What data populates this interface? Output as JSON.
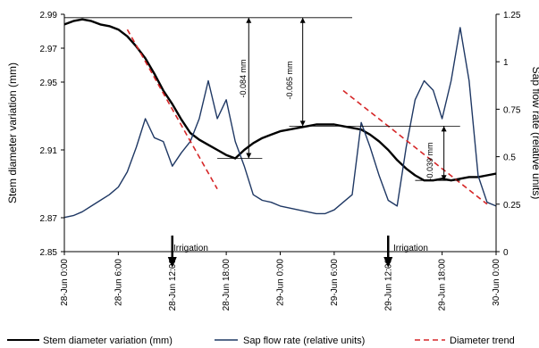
{
  "chart_data": {
    "type": "line",
    "ylabel": "Stem diameter variation (mm)",
    "y2label": "Sap flow rate (relative units)",
    "ylim": [
      2.85,
      2.99
    ],
    "yticks": [
      2.85,
      2.87,
      2.91,
      2.95,
      2.97,
      2.99
    ],
    "y2lim": [
      0,
      1.25
    ],
    "y2ticks": [
      0,
      0.25,
      0.5,
      0.75,
      1,
      1.25
    ],
    "xlim_hours": [
      0,
      48
    ],
    "xticks": [
      {
        "h": 0,
        "label": "28-Jun 0:00"
      },
      {
        "h": 6,
        "label": "28-Jun 6:00"
      },
      {
        "h": 12,
        "label": "28-Jun 12:00"
      },
      {
        "h": 18,
        "label": "28-Jun 18:00"
      },
      {
        "h": 24,
        "label": "29-Jun 0:00"
      },
      {
        "h": 30,
        "label": "29-Jun 6:00"
      },
      {
        "h": 36,
        "label": "29-Jun 12:00"
      },
      {
        "h": 42,
        "label": "29-Jun 18:00"
      },
      {
        "h": 48,
        "label": "30-Jun 0:00"
      }
    ],
    "series": [
      {
        "name": "Stem diameter variation (mm)",
        "color": "#000000",
        "axis": "left",
        "points": [
          [
            0,
            2.984
          ],
          [
            1,
            2.986
          ],
          [
            2,
            2.987
          ],
          [
            3,
            2.986
          ],
          [
            4,
            2.984
          ],
          [
            5,
            2.983
          ],
          [
            6,
            2.981
          ],
          [
            7,
            2.977
          ],
          [
            8,
            2.971
          ],
          [
            9,
            2.964
          ],
          [
            10,
            2.955
          ],
          [
            11,
            2.945
          ],
          [
            12,
            2.937
          ],
          [
            13,
            2.928
          ],
          [
            14,
            2.92
          ],
          [
            15,
            2.916
          ],
          [
            16,
            2.913
          ],
          [
            17,
            2.91
          ],
          [
            18,
            2.907
          ],
          [
            19,
            2.905
          ],
          [
            20,
            2.91
          ],
          [
            21,
            2.914
          ],
          [
            22,
            2.917
          ],
          [
            23,
            2.919
          ],
          [
            24,
            2.921
          ],
          [
            25,
            2.922
          ],
          [
            26,
            2.923
          ],
          [
            27,
            2.924
          ],
          [
            28,
            2.925
          ],
          [
            29,
            2.925
          ],
          [
            30,
            2.925
          ],
          [
            31,
            2.924
          ],
          [
            32,
            2.923
          ],
          [
            33,
            2.922
          ],
          [
            34,
            2.919
          ],
          [
            35,
            2.915
          ],
          [
            36,
            2.91
          ],
          [
            37,
            2.904
          ],
          [
            38,
            2.899
          ],
          [
            39,
            2.895
          ],
          [
            40,
            2.892
          ],
          [
            41,
            2.892
          ],
          [
            42,
            2.893
          ],
          [
            43,
            2.892
          ],
          [
            44,
            2.893
          ],
          [
            45,
            2.894
          ],
          [
            46,
            2.894
          ],
          [
            47,
            2.895
          ],
          [
            48,
            2.896
          ]
        ]
      },
      {
        "name": "Sap flow rate (relative units)",
        "color": "#1f3864",
        "axis": "right",
        "points": [
          [
            0,
            0.18
          ],
          [
            1,
            0.19
          ],
          [
            2,
            0.21
          ],
          [
            3,
            0.24
          ],
          [
            4,
            0.27
          ],
          [
            5,
            0.3
          ],
          [
            6,
            0.34
          ],
          [
            7,
            0.42
          ],
          [
            8,
            0.55
          ],
          [
            9,
            0.7
          ],
          [
            10,
            0.6
          ],
          [
            11,
            0.58
          ],
          [
            12,
            0.45
          ],
          [
            13,
            0.52
          ],
          [
            14,
            0.58
          ],
          [
            15,
            0.7
          ],
          [
            16,
            0.9
          ],
          [
            17,
            0.7
          ],
          [
            18,
            0.8
          ],
          [
            19,
            0.58
          ],
          [
            20,
            0.45
          ],
          [
            21,
            0.3
          ],
          [
            22,
            0.27
          ],
          [
            23,
            0.26
          ],
          [
            24,
            0.24
          ],
          [
            25,
            0.23
          ],
          [
            26,
            0.22
          ],
          [
            27,
            0.21
          ],
          [
            28,
            0.2
          ],
          [
            29,
            0.2
          ],
          [
            30,
            0.22
          ],
          [
            31,
            0.26
          ],
          [
            32,
            0.3
          ],
          [
            33,
            0.68
          ],
          [
            34,
            0.55
          ],
          [
            35,
            0.4
          ],
          [
            36,
            0.27
          ],
          [
            37,
            0.24
          ],
          [
            38,
            0.55
          ],
          [
            39,
            0.8
          ],
          [
            40,
            0.9
          ],
          [
            41,
            0.85
          ],
          [
            42,
            0.7
          ],
          [
            43,
            0.9
          ],
          [
            44,
            1.18
          ],
          [
            45,
            0.9
          ],
          [
            46,
            0.4
          ],
          [
            47,
            0.26
          ],
          [
            48,
            0.24
          ]
        ]
      },
      {
        "name": "Diameter trend",
        "color": "#d62728",
        "axis": "left",
        "style": "dashed",
        "segments": [
          [
            [
              7,
              2.981
            ],
            [
              17,
              2.887
            ]
          ],
          [
            [
              31,
              2.945
            ],
            [
              47,
              2.878
            ]
          ]
        ]
      }
    ],
    "annotations": [
      {
        "label": "-0.084 mm"
      },
      {
        "label": "-0.065 mm"
      },
      {
        "label": "-0.039 mm"
      },
      {
        "label": "Irrigation",
        "h": 12
      },
      {
        "label": "Irrigation",
        "h": 36
      }
    ]
  }
}
